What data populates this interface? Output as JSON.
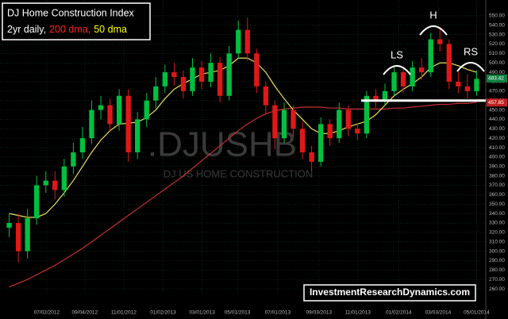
{
  "chart_data": {
    "type": "candlestick",
    "title": "DJ Home Construction Index",
    "subtitle_parts": [
      {
        "text": "2yr daily,",
        "color": "#ffffff"
      },
      {
        "text": "200 dma,",
        "color": "#ff2020"
      },
      {
        "text": "50 dma",
        "color": "#ffff00"
      }
    ],
    "watermark": ".DJUSHB",
    "watermark_sub": "DJ US HOME CONSTRUCTION",
    "credit": "InvestmentResearchDynamics.com",
    "annotations": [
      "LS",
      "H",
      "RS"
    ],
    "last_price": 483.42,
    "last_ma": 457.85,
    "neckline": 460,
    "up_color": "#00c040",
    "down_color": "#e01818",
    "grid": true,
    "x": [
      0,
      2,
      4,
      6,
      8,
      10,
      12,
      14,
      16,
      18,
      20,
      22,
      24,
      26,
      28,
      30,
      32,
      34,
      36,
      38,
      40,
      42,
      44,
      46,
      48,
      50,
      52,
      54,
      56,
      58,
      60,
      62,
      64,
      66,
      68,
      70,
      72,
      74,
      76,
      78,
      80,
      82,
      84,
      86,
      88,
      90,
      92,
      94,
      96,
      98,
      100,
      102
    ],
    "open": [
      325,
      330,
      300,
      335,
      370,
      375,
      365,
      390,
      405,
      420,
      450,
      455,
      435,
      465,
      405,
      440,
      460,
      475,
      490,
      485,
      470,
      495,
      480,
      500,
      465,
      510,
      535,
      510,
      475,
      455,
      420,
      450,
      430,
      405,
      395,
      435,
      420,
      450,
      430,
      425,
      465,
      460,
      470,
      490,
      475,
      495,
      490,
      525,
      520,
      480,
      475,
      470
    ],
    "high": [
      340,
      340,
      345,
      380,
      385,
      385,
      398,
      415,
      432,
      460,
      465,
      462,
      472,
      472,
      448,
      468,
      485,
      498,
      500,
      492,
      505,
      502,
      510,
      506,
      518,
      545,
      548,
      515,
      480,
      460,
      458,
      455,
      438,
      412,
      442,
      440,
      458,
      455,
      436,
      470,
      472,
      478,
      496,
      496,
      502,
      505,
      532,
      538,
      525,
      490,
      488,
      492
    ],
    "low": [
      315,
      288,
      292,
      328,
      362,
      355,
      358,
      382,
      398,
      414,
      440,
      428,
      428,
      395,
      398,
      432,
      452,
      468,
      476,
      462,
      465,
      472,
      474,
      458,
      460,
      505,
      502,
      468,
      445,
      408,
      415,
      422,
      398,
      385,
      390,
      412,
      415,
      422,
      418,
      420,
      452,
      455,
      465,
      468,
      470,
      482,
      485,
      512,
      472,
      468,
      462,
      465
    ],
    "close": [
      330,
      300,
      335,
      370,
      375,
      365,
      390,
      405,
      420,
      450,
      455,
      435,
      465,
      405,
      440,
      460,
      475,
      490,
      485,
      470,
      495,
      480,
      500,
      465,
      510,
      535,
      510,
      475,
      455,
      420,
      450,
      430,
      405,
      395,
      435,
      420,
      450,
      430,
      425,
      465,
      460,
      470,
      490,
      475,
      495,
      490,
      525,
      520,
      480,
      475,
      470,
      483
    ],
    "series": [
      {
        "name": "200 dma",
        "color": "#c83030",
        "values": [
          262,
          266,
          270,
          275,
          280,
          285,
          291,
          297,
          303,
          310,
          317,
          324,
          331,
          338,
          345,
          352,
          359,
          366,
          373,
          380,
          388,
          396,
          404,
          412,
          420,
          428,
          435,
          441,
          446,
          449,
          451,
          452,
          453,
          453,
          453,
          452,
          452,
          451,
          451,
          451,
          451,
          451,
          452,
          452,
          453,
          454,
          455,
          456,
          456,
          457,
          457,
          458
        ]
      },
      {
        "name": "50 dma",
        "color": "#e8e060",
        "values": [
          340,
          338,
          336,
          336,
          340,
          350,
          362,
          375,
          390,
          405,
          418,
          428,
          435,
          436,
          437,
          442,
          450,
          462,
          472,
          478,
          483,
          488,
          490,
          492,
          497,
          505,
          505,
          500,
          490,
          475,
          462,
          450,
          440,
          430,
          425,
          425,
          428,
          432,
          435,
          438,
          445,
          455,
          465,
          472,
          478,
          485,
          495,
          500,
          500,
          497,
          493,
          490
        ]
      }
    ],
    "xlim": [
      -2,
      104
    ],
    "xticks": [
      {
        "value": 8.2,
        "label": "07/02/2012"
      },
      {
        "value": 16.5,
        "label": "09/04/2012"
      },
      {
        "value": 25,
        "label": "11/01/2012"
      },
      {
        "value": 33.6,
        "label": "01/02/2013"
      },
      {
        "value": 42.1,
        "label": "03/01/2013"
      },
      {
        "value": 49.8,
        "label": "05/01/2013"
      },
      {
        "value": 58.6,
        "label": "07/01/2013"
      },
      {
        "value": 67.6,
        "label": "09/03/2013"
      },
      {
        "value": 76.1,
        "label": "11/01/2013"
      },
      {
        "value": 85,
        "label": "01/02/2014"
      },
      {
        "value": 93.6,
        "label": "03/03/2014"
      },
      {
        "value": 102,
        "label": "05/01/2014"
      }
    ],
    "ylim": [
      255,
      560
    ],
    "yticks": [
      {
        "value": 260,
        "label": "260.00"
      },
      {
        "value": 270,
        "label": "270.00"
      },
      {
        "value": 280,
        "label": "280.00"
      },
      {
        "value": 290,
        "label": "290.00"
      },
      {
        "value": 300,
        "label": "300.00"
      },
      {
        "value": 310,
        "label": "310.00"
      },
      {
        "value": 320,
        "label": "320.00"
      },
      {
        "value": 330,
        "label": "330.00"
      },
      {
        "value": 340,
        "label": "340.00"
      },
      {
        "value": 350,
        "label": "350.00"
      },
      {
        "value": 360,
        "label": "360.00"
      },
      {
        "value": 370,
        "label": "370.00"
      },
      {
        "value": 380,
        "label": "380.00"
      },
      {
        "value": 390,
        "label": "390.00"
      },
      {
        "value": 400,
        "label": "400.00"
      },
      {
        "value": 410,
        "label": "410.00"
      },
      {
        "value": 420,
        "label": "420.00"
      },
      {
        "value": 430,
        "label": "430.00"
      },
      {
        "value": 440,
        "label": "440.00"
      },
      {
        "value": 450,
        "label": "450.00"
      },
      {
        "value": 460,
        "label": "460.00"
      },
      {
        "value": 470,
        "label": "470.00"
      },
      {
        "value": 480,
        "label": "480.00"
      },
      {
        "value": 490,
        "label": "490.00"
      },
      {
        "value": 500,
        "label": "500.00"
      },
      {
        "value": 510,
        "label": "510.00"
      },
      {
        "value": 520,
        "label": "520.00"
      },
      {
        "value": 530,
        "label": "530.00"
      },
      {
        "value": 540,
        "label": "540.00"
      },
      {
        "value": 550,
        "label": "550.00"
      }
    ]
  }
}
